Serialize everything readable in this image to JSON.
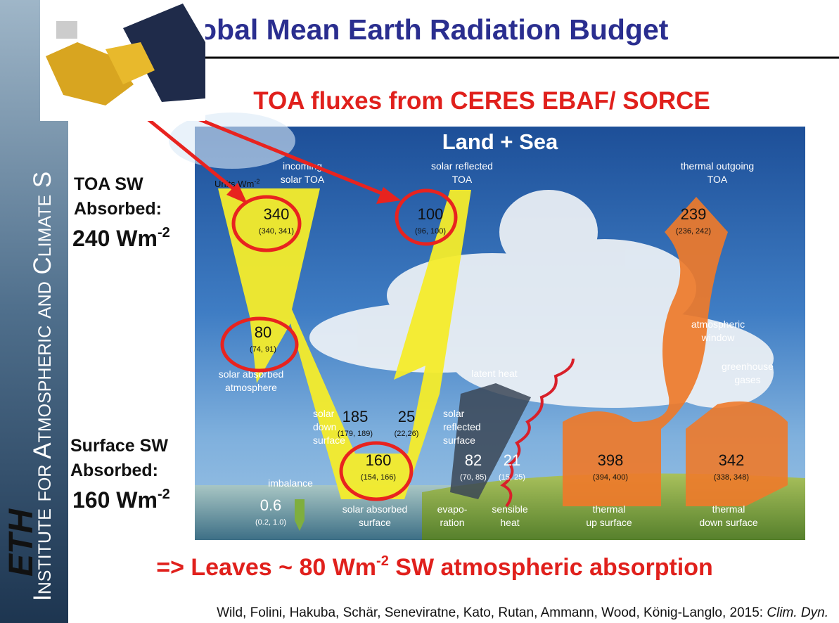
{
  "slide": {
    "title": "obal Mean Earth Radiation Budget",
    "subtitle": "TOA fluxes from CERES EBAF/ SORCE",
    "sidebar": {
      "logo": "ETH",
      "institute": "Institute for Atmospheric and Climate S"
    },
    "left_labels": [
      {
        "lines": [
          "TOA SW",
          "Absorbed:"
        ],
        "value": "240 Wm",
        "sup": "-2"
      },
      {
        "lines": [
          "Surface SW",
          "Absorbed:"
        ],
        "value": "160 Wm",
        "sup": "-2"
      }
    ],
    "diagram": {
      "title": "Land + Sea",
      "units": {
        "text": "Units Wm",
        "sup": "-2"
      },
      "fluxes": [
        {
          "value": 340,
          "range": "(340, 341)",
          "caption": [
            "incoming",
            "solar TOA"
          ]
        },
        {
          "value": 100,
          "range": "(96, 100)",
          "caption": [
            "solar reflected",
            "TOA"
          ]
        },
        {
          "value": 239,
          "range": "(236, 242)",
          "caption": [
            "thermal outgoing",
            "TOA"
          ]
        },
        {
          "value": 80,
          "range": "(74, 91)",
          "caption": [
            "solar absorbed",
            "atmosphere"
          ]
        },
        {
          "value": 185,
          "range": "(179, 189)",
          "caption": [
            "solar",
            "down",
            "surface"
          ]
        },
        {
          "value": 25,
          "range": "(22,26)",
          "caption": [
            "solar",
            "reflected",
            "surface"
          ]
        },
        {
          "value": 160,
          "range": "(154, 166)",
          "caption": [
            "solar absorbed",
            "surface"
          ]
        },
        {
          "value": 82,
          "range": "(70, 85)",
          "caption": [
            "evapo-",
            "ration"
          ]
        },
        {
          "value": 21,
          "range": "(15, 25)",
          "caption": [
            "sensible",
            "heat"
          ]
        },
        {
          "value": 398,
          "range": "(394, 400)",
          "caption": [
            "thermal",
            "up surface"
          ]
        },
        {
          "value": 342,
          "range": "(338, 348)",
          "caption": [
            "thermal",
            "down surface"
          ]
        },
        {
          "value": 0.6,
          "range": "(0.2, 1.0)",
          "caption": [
            "imbalance"
          ]
        }
      ],
      "labels": [
        [
          "latent heat"
        ],
        [
          "atmospheric",
          "window"
        ],
        [
          "greenhouse",
          "gases"
        ]
      ]
    },
    "conclusion": {
      "before": "=> Leaves ~ 80 Wm",
      "sup": "-2",
      "after": " SW atmospheric absorption"
    },
    "citation": {
      "authors": "Wild, Folini, Hakuba, Schär, Seneviratne, Kato, Rutan, Ammann, Wood, König-Langlo, 2015: ",
      "journal": "Clim. Dyn."
    }
  }
}
